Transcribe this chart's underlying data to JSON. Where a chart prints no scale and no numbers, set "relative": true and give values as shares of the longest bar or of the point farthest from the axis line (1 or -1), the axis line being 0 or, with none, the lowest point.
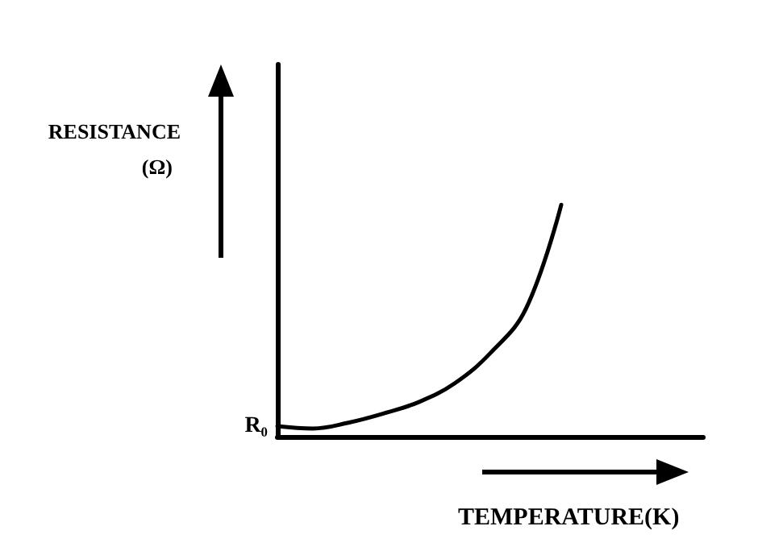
{
  "chart_data": {
    "type": "line",
    "relative": true,
    "ylabel": "RESISTANCE\n(Ω)",
    "xlabel": "TEMPERATURE(K)",
    "categories": [
      null,
      null,
      null,
      null,
      null,
      null,
      null,
      null,
      null,
      null,
      null,
      null,
      null
    ],
    "series": [
      {
        "color": "#000000",
        "values": [
          0.045,
          0.035,
          0.06,
          0.1,
          0.15,
          0.23,
          0.36,
          0.55,
          1.0,
          null,
          null,
          null,
          null
        ]
      }
    ],
    "annotations": [
      "R₀"
    ],
    "marker": "none",
    "line_style": "solid",
    "grid": false
  }
}
